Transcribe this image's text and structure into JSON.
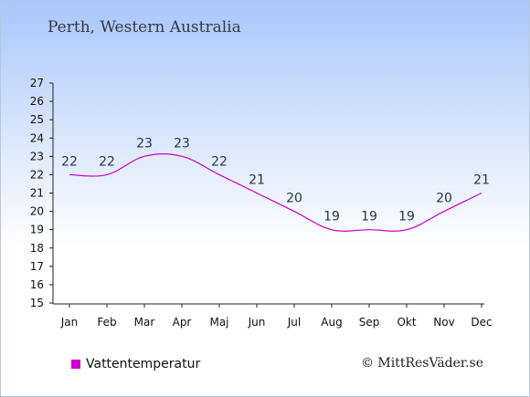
{
  "chart_data": {
    "type": "line",
    "title": "Perth, Western Australia",
    "categories": [
      "Jan",
      "Feb",
      "Mar",
      "Apr",
      "Maj",
      "Jun",
      "Jul",
      "Aug",
      "Sep",
      "Okt",
      "Nov",
      "Dec"
    ],
    "series": [
      {
        "name": "Vattentemperatur",
        "values": [
          22,
          22,
          23,
          23,
          22,
          21,
          20,
          19,
          19,
          19,
          20,
          21
        ],
        "color": "#cc00cc"
      }
    ],
    "ylim": [
      15,
      27
    ],
    "yticks": [
      15,
      16,
      17,
      18,
      19,
      20,
      21,
      22,
      23,
      24,
      25,
      26,
      27
    ],
    "grid": false,
    "legend": "bottom-left"
  },
  "credit": "© MittResVäder.se",
  "colors": {
    "series": "#cc00cc",
    "label": "#1f3550",
    "background_top": "#a9c6fb"
  }
}
